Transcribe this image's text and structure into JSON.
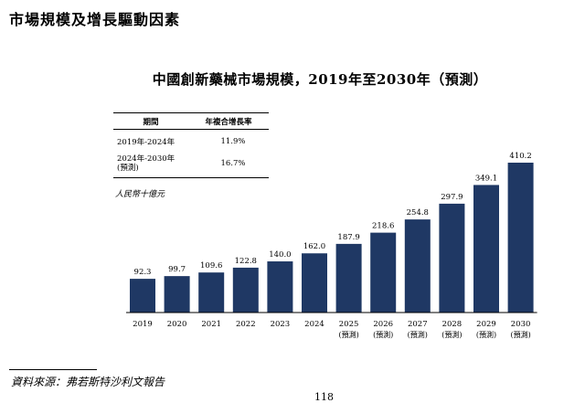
{
  "page": {
    "section_title": "市場規模及增長驅動因素",
    "source": "資料來源：弗若斯特沙利文報告",
    "page_number": "118"
  },
  "cagr_table": {
    "headers": [
      "期間",
      "年複合增長率"
    ],
    "rows": [
      {
        "period": "2019年-2024年",
        "cagr": "11.9%"
      },
      {
        "period": "2024年-2030年\n(預測)",
        "cagr": "16.7%"
      }
    ]
  },
  "chart_data": {
    "type": "bar",
    "title": "中國創新藥械市場規模，2019年至2030年（預測）",
    "ylabel": "人民幣十億元",
    "categories": [
      "2019",
      "2020",
      "2021",
      "2022",
      "2023",
      "2024",
      "2025",
      "2026",
      "2027",
      "2028",
      "2029",
      "2030"
    ],
    "forecast_labels": [
      "",
      "",
      "",
      "",
      "",
      "",
      "(預測)",
      "(預測)",
      "(預測)",
      "(預測)",
      "(預測)",
      "(預測)"
    ],
    "values": [
      92.3,
      99.7,
      109.6,
      122.8,
      140.0,
      162.0,
      187.9,
      218.6,
      254.8,
      297.9,
      349.1,
      410.2
    ],
    "value_labels": [
      "92.3",
      "99.7",
      "109.6",
      "122.8",
      "140.0",
      "162.0",
      "187.9",
      "218.6",
      "254.8",
      "297.9",
      "349.1",
      "410.2"
    ],
    "bar_color": "#1f3864",
    "ylim": [
      0,
      410.2
    ]
  }
}
